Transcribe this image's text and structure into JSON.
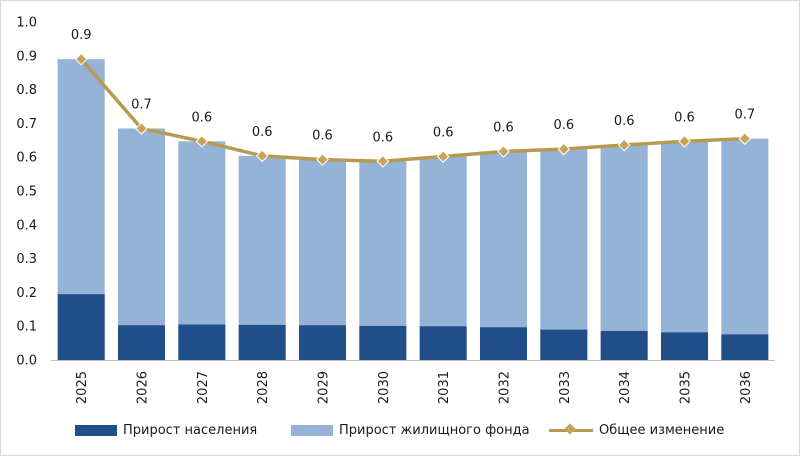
{
  "chart_data": {
    "type": "bar",
    "stacked": true,
    "categories": [
      "2025",
      "2026",
      "2027",
      "2028",
      "2029",
      "2030",
      "2031",
      "2032",
      "2033",
      "2034",
      "2035",
      "2036"
    ],
    "series": [
      {
        "name": "Прирост населения",
        "kind": "bar",
        "color": "#1f4e88",
        "values": [
          0.195,
          0.103,
          0.105,
          0.104,
          0.103,
          0.101,
          0.1,
          0.097,
          0.09,
          0.086,
          0.082,
          0.076
        ]
      },
      {
        "name": "Прирост жилищного фонда",
        "kind": "bar",
        "color": "#95b3d7",
        "values": [
          0.695,
          0.582,
          0.542,
          0.5,
          0.49,
          0.487,
          0.502,
          0.52,
          0.534,
          0.55,
          0.565,
          0.579
        ]
      },
      {
        "name": "Общее изменение",
        "kind": "line",
        "color": "#b89a4f",
        "marker_color": "#c6a45a",
        "values": [
          0.89,
          0.685,
          0.647,
          0.604,
          0.593,
          0.588,
          0.602,
          0.617,
          0.624,
          0.636,
          0.647,
          0.655
        ],
        "labels": [
          "0.9",
          "0.7",
          "0.6",
          "0.6",
          "0.6",
          "0.6",
          "0.6",
          "0.6",
          "0.6",
          "0.6",
          "0.6",
          "0.7"
        ]
      }
    ],
    "y_ticks": [
      "0.0",
      "0.1",
      "0.2",
      "0.3",
      "0.4",
      "0.5",
      "0.6",
      "0.7",
      "0.8",
      "0.9",
      "1.0"
    ],
    "ylim": [
      0,
      1.0
    ],
    "legend_position": "bottom",
    "grid": false
  }
}
